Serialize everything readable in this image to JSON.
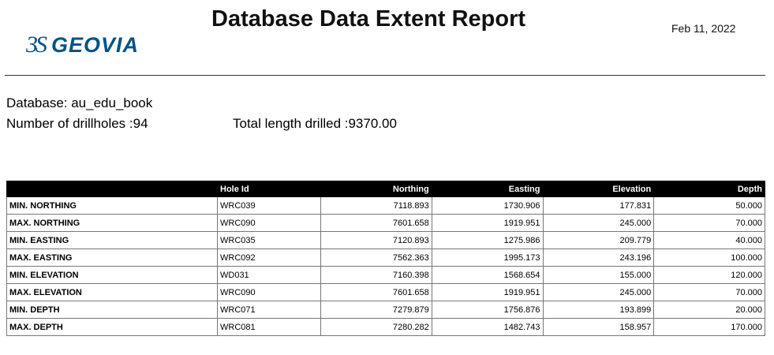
{
  "header": {
    "logo_ds": "3S",
    "logo_text": "GEOVIA",
    "title": "Database Data Extent Report",
    "date": "Feb 11, 2022"
  },
  "summary": {
    "database": "Database: au_edu_book",
    "num_drillholes": "Number of drillholes :94",
    "total_length": "Total length drilled :9370.00"
  },
  "table": {
    "columns": [
      "",
      "Hole Id",
      "Northing",
      "Easting",
      "Elevation",
      "Depth"
    ],
    "rows": [
      [
        "MIN. NORTHING",
        "WRC039",
        "7118.893",
        "1730.906",
        "177.831",
        "50.000"
      ],
      [
        "MAX. NORTHING",
        "WRC090",
        "7601.658",
        "1919.951",
        "245.000",
        "70.000"
      ],
      [
        "MIN. EASTING",
        "WRC035",
        "7120.893",
        "1275.986",
        "209.779",
        "40.000"
      ],
      [
        "MAX. EASTING",
        "WRC092",
        "7562.363",
        "1995.173",
        "243.196",
        "100.000"
      ],
      [
        "MIN. ELEVATION",
        "WD031",
        "7160.398",
        "1568.654",
        "155.000",
        "120.000"
      ],
      [
        "MAX. ELEVATION",
        "WRC090",
        "7601.658",
        "1919.951",
        "245.000",
        "70.000"
      ],
      [
        "MIN. DEPTH",
        "WRC071",
        "7279.879",
        "1756.876",
        "193.899",
        "20.000"
      ],
      [
        "MAX. DEPTH",
        "WRC081",
        "7280.282",
        "1482.743",
        "158.957",
        "170.000"
      ]
    ]
  }
}
